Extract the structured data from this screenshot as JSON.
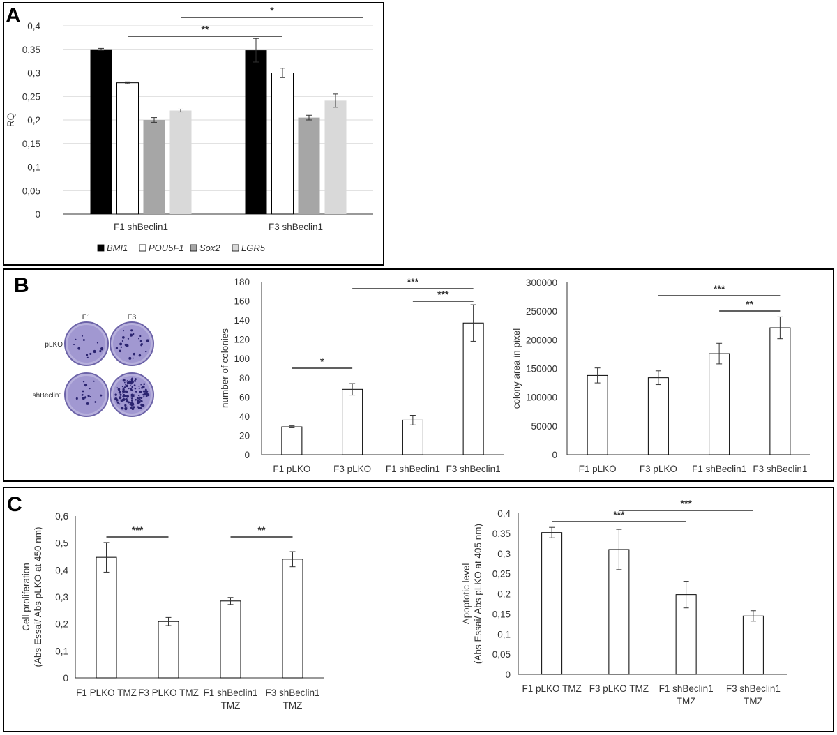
{
  "panels": {
    "A": {
      "letter": "A"
    },
    "B": {
      "letter": "B"
    },
    "C": {
      "letter": "C"
    }
  },
  "plates": {
    "col_labels": [
      "F1",
      "F3"
    ],
    "row_labels": [
      "pLKO",
      "shBeclin1"
    ],
    "plate_color": "#8f85c9",
    "colony_color": "#2b2470"
  },
  "chart_data": [
    {
      "id": "A",
      "type": "bar",
      "ylabel": "RQ",
      "ylim": [
        0,
        0.4
      ],
      "yticks": [
        0,
        0.05,
        0.1,
        0.15,
        0.2,
        0.25,
        0.3,
        0.35,
        0.4
      ],
      "ytick_labels": [
        "0",
        "0,05",
        "0,1",
        "0,15",
        "0,2",
        "0,25",
        "0,3",
        "0,35",
        "0,4"
      ],
      "categories": [
        "F1 shBeclin1",
        "F3 shBeclin1"
      ],
      "series": [
        {
          "name": "BMI1",
          "color": "#000000",
          "values": [
            0.35,
            0.348
          ],
          "errors": [
            0.002,
            0.025
          ]
        },
        {
          "name": "POU5F1",
          "color": "#ffffff",
          "values": [
            0.279,
            0.3
          ],
          "errors": [
            0.002,
            0.01
          ]
        },
        {
          "name": "Sox2",
          "color": "#a6a6a6",
          "values": [
            0.2,
            0.205
          ],
          "errors": [
            0.005,
            0.005
          ]
        },
        {
          "name": "LGR5",
          "color": "#d9d9d9",
          "values": [
            0.22,
            0.241
          ],
          "errors": [
            0.003,
            0.014
          ]
        }
      ],
      "legend_position": "bottom",
      "significance": [
        {
          "label": "**",
          "from": [
            0,
            1
          ],
          "to": [
            1,
            1
          ]
        },
        {
          "label": "*",
          "from": [
            0,
            3
          ],
          "to": [
            1,
            3
          ]
        }
      ]
    },
    {
      "id": "B-colonies",
      "type": "bar",
      "ylabel": "number of colonies",
      "ylim": [
        0,
        180
      ],
      "yticks": [
        0,
        20,
        40,
        60,
        80,
        100,
        120,
        140,
        160,
        180
      ],
      "ytick_labels": [
        "0",
        "20",
        "40",
        "60",
        "80",
        "100",
        "120",
        "140",
        "160",
        "180"
      ],
      "categories": [
        "F1 pLKO",
        "F3 pLKO",
        "F1 shBeclin1",
        "F3 shBeclin1"
      ],
      "values": [
        29,
        68,
        36,
        137
      ],
      "errors": [
        1,
        6,
        5,
        19
      ],
      "significance": [
        {
          "label": "*",
          "from": 0,
          "to": 1
        },
        {
          "label": "***",
          "from": 2,
          "to": 3
        },
        {
          "label": "***",
          "from": 1,
          "to": 3
        }
      ]
    },
    {
      "id": "B-area",
      "type": "bar",
      "ylabel": "colony area in pixel",
      "ylim": [
        0,
        300000
      ],
      "yticks": [
        0,
        50000,
        100000,
        150000,
        200000,
        250000,
        300000
      ],
      "ytick_labels": [
        "0",
        "50000",
        "100000",
        "150000",
        "200000",
        "250000",
        "300000"
      ],
      "categories": [
        "F1 pLKO",
        "F3 pLKO",
        "F1 shBeclin1",
        "F3 shBeclin1"
      ],
      "values": [
        138000,
        134000,
        176000,
        221000
      ],
      "errors": [
        13000,
        12000,
        18000,
        19000
      ],
      "significance": [
        {
          "label": "**",
          "from": 2,
          "to": 3
        },
        {
          "label": "***",
          "from": 1,
          "to": 3
        }
      ]
    },
    {
      "id": "C-proliferation",
      "type": "bar",
      "ylabel": [
        "Cell proliferation",
        "(Abs Essai/ Abs pLKO at 450 nm)"
      ],
      "ylim": [
        0,
        0.6
      ],
      "yticks": [
        0,
        0.1,
        0.2,
        0.3,
        0.4,
        0.5,
        0.6
      ],
      "ytick_labels": [
        "0",
        "0,1",
        "0,2",
        "0,3",
        "0,4",
        "0,5",
        "0,6"
      ],
      "categories": [
        [
          "F1 PLKO TMZ"
        ],
        [
          "F3 PLKO TMZ"
        ],
        [
          "F1 shBeclin1",
          "TMZ"
        ],
        [
          "F3 shBeclin1",
          "TMZ"
        ]
      ],
      "values": [
        0.447,
        0.209,
        0.285,
        0.44
      ],
      "errors": [
        0.055,
        0.015,
        0.013,
        0.028
      ],
      "significance": [
        {
          "label": "***",
          "from": 0,
          "to": 1
        },
        {
          "label": "**",
          "from": 2,
          "to": 3
        }
      ]
    },
    {
      "id": "C-apoptosis",
      "type": "bar",
      "ylabel": [
        "Apoptotic level",
        "(Abs Essai/ Abs pLKO at 405 nm)"
      ],
      "ylim": [
        0,
        0.4
      ],
      "yticks": [
        0,
        0.05,
        0.1,
        0.15,
        0.2,
        0.25,
        0.3,
        0.35,
        0.4
      ],
      "ytick_labels": [
        "0",
        "0,05",
        "0,1",
        "0,15",
        "0,2",
        "0,25",
        "0,3",
        "0,35",
        "0,4"
      ],
      "categories": [
        [
          "F1 pLKO TMZ"
        ],
        [
          "F3 pLKO TMZ"
        ],
        [
          "F1 shBeclin1",
          "TMZ"
        ],
        [
          "F3 shBeclin1",
          "TMZ"
        ]
      ],
      "values": [
        0.352,
        0.31,
        0.198,
        0.145
      ],
      "errors": [
        0.013,
        0.05,
        0.033,
        0.013
      ],
      "significance": [
        {
          "label": "***",
          "from": 0,
          "to": 2
        },
        {
          "label": "***",
          "from": 1,
          "to": 3
        }
      ]
    }
  ]
}
